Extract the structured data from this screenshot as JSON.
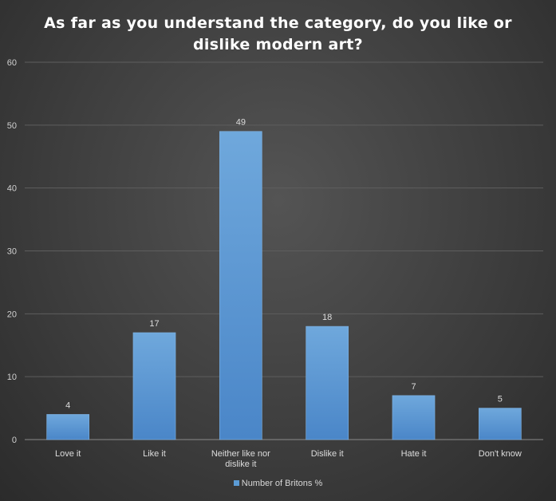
{
  "chart_data": {
    "type": "bar",
    "title": "As far as you understand  the category,  do you like  or dislike  modern  art?",
    "title_lines": [
      "As far as you understand  the category,  do you like  or",
      "dislike  modern  art?"
    ],
    "categories": [
      "Love it",
      "Like it",
      "Neither like nor dislike it",
      "Dislike it",
      "Hate it",
      "Don't know"
    ],
    "category_lines": [
      [
        "Love it"
      ],
      [
        "Like it"
      ],
      [
        "Neither like nor",
        "dislike it"
      ],
      [
        "Dislike it"
      ],
      [
        "Hate it"
      ],
      [
        "Don't know"
      ]
    ],
    "series": [
      {
        "name": "Number of Britons %",
        "values": [
          4,
          17,
          49,
          18,
          7,
          5
        ],
        "color": "#5b9bd5"
      }
    ],
    "ylim": [
      0,
      60
    ],
    "yticks": [
      0,
      10,
      20,
      30,
      40,
      50,
      60
    ],
    "grid": true,
    "legend": "bottom",
    "data_labels": true
  }
}
